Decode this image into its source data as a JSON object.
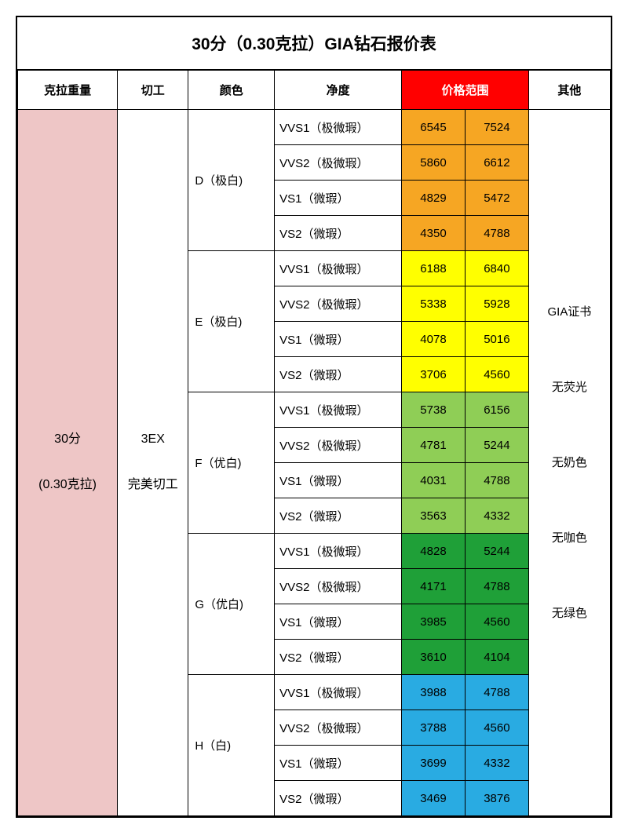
{
  "title": "30分（0.30克拉）GIA钻石报价表",
  "headers": {
    "carat": "克拉重量",
    "cut": "切工",
    "color": "颜色",
    "clarity": "净度",
    "price": "价格范围",
    "other": "其他"
  },
  "carat": {
    "line1": "30分",
    "line2": "(0.30克拉)"
  },
  "cut": {
    "line1": "3EX",
    "line2": "完美切工"
  },
  "colors": {
    "price_header_bg": "#ff0000",
    "price_header_fg": "#ffffff",
    "carat_bg": "#eec6c6",
    "orange": "#f6a623",
    "yellow": "#ffff00",
    "lightgreen": "#8fce56",
    "darkgreen": "#1fa038",
    "blue": "#29abe2"
  },
  "other_notes": [
    "GIA证书",
    "无荧光",
    "无奶色",
    "无咖色",
    "无绿色"
  ],
  "groups": [
    {
      "color_label": "D（极白)",
      "price_color": "orange",
      "rows": [
        {
          "clarity": "VVS1（极微瑕）",
          "low": 6545,
          "high": 7524
        },
        {
          "clarity": "VVS2（极微瑕）",
          "low": 5860,
          "high": 6612
        },
        {
          "clarity": "VS1（微瑕）",
          "low": 4829,
          "high": 5472
        },
        {
          "clarity": "VS2（微瑕）",
          "low": 4350,
          "high": 4788
        }
      ]
    },
    {
      "color_label": "E（极白)",
      "price_color": "yellow",
      "rows": [
        {
          "clarity": "VVS1（极微瑕）",
          "low": 6188,
          "high": 6840
        },
        {
          "clarity": "VVS2（极微瑕）",
          "low": 5338,
          "high": 5928
        },
        {
          "clarity": "VS1（微瑕）",
          "low": 4078,
          "high": 5016
        },
        {
          "clarity": "VS2（微瑕）",
          "low": 3706,
          "high": 4560
        }
      ]
    },
    {
      "color_label": "F（优白)",
      "price_color": "lightgreen",
      "rows": [
        {
          "clarity": "VVS1（极微瑕）",
          "low": 5738,
          "high": 6156
        },
        {
          "clarity": "VVS2（极微瑕）",
          "low": 4781,
          "high": 5244
        },
        {
          "clarity": "VS1（微瑕）",
          "low": 4031,
          "high": 4788
        },
        {
          "clarity": "VS2（微瑕）",
          "low": 3563,
          "high": 4332
        }
      ]
    },
    {
      "color_label": "G（优白)",
      "price_color": "darkgreen",
      "rows": [
        {
          "clarity": "VVS1（极微瑕）",
          "low": 4828,
          "high": 5244
        },
        {
          "clarity": "VVS2（极微瑕）",
          "low": 4171,
          "high": 4788
        },
        {
          "clarity": "VS1（微瑕）",
          "low": 3985,
          "high": 4560
        },
        {
          "clarity": "VS2（微瑕）",
          "low": 3610,
          "high": 4104
        }
      ]
    },
    {
      "color_label": "H（白)",
      "price_color": "blue",
      "rows": [
        {
          "clarity": "VVS1（极微瑕）",
          "low": 3988,
          "high": 4788
        },
        {
          "clarity": "VVS2（极微瑕）",
          "low": 3788,
          "high": 4560
        },
        {
          "clarity": "VS1（微瑕）",
          "low": 3699,
          "high": 4332
        },
        {
          "clarity": "VS2（微瑕）",
          "low": 3469,
          "high": 3876
        }
      ]
    }
  ]
}
